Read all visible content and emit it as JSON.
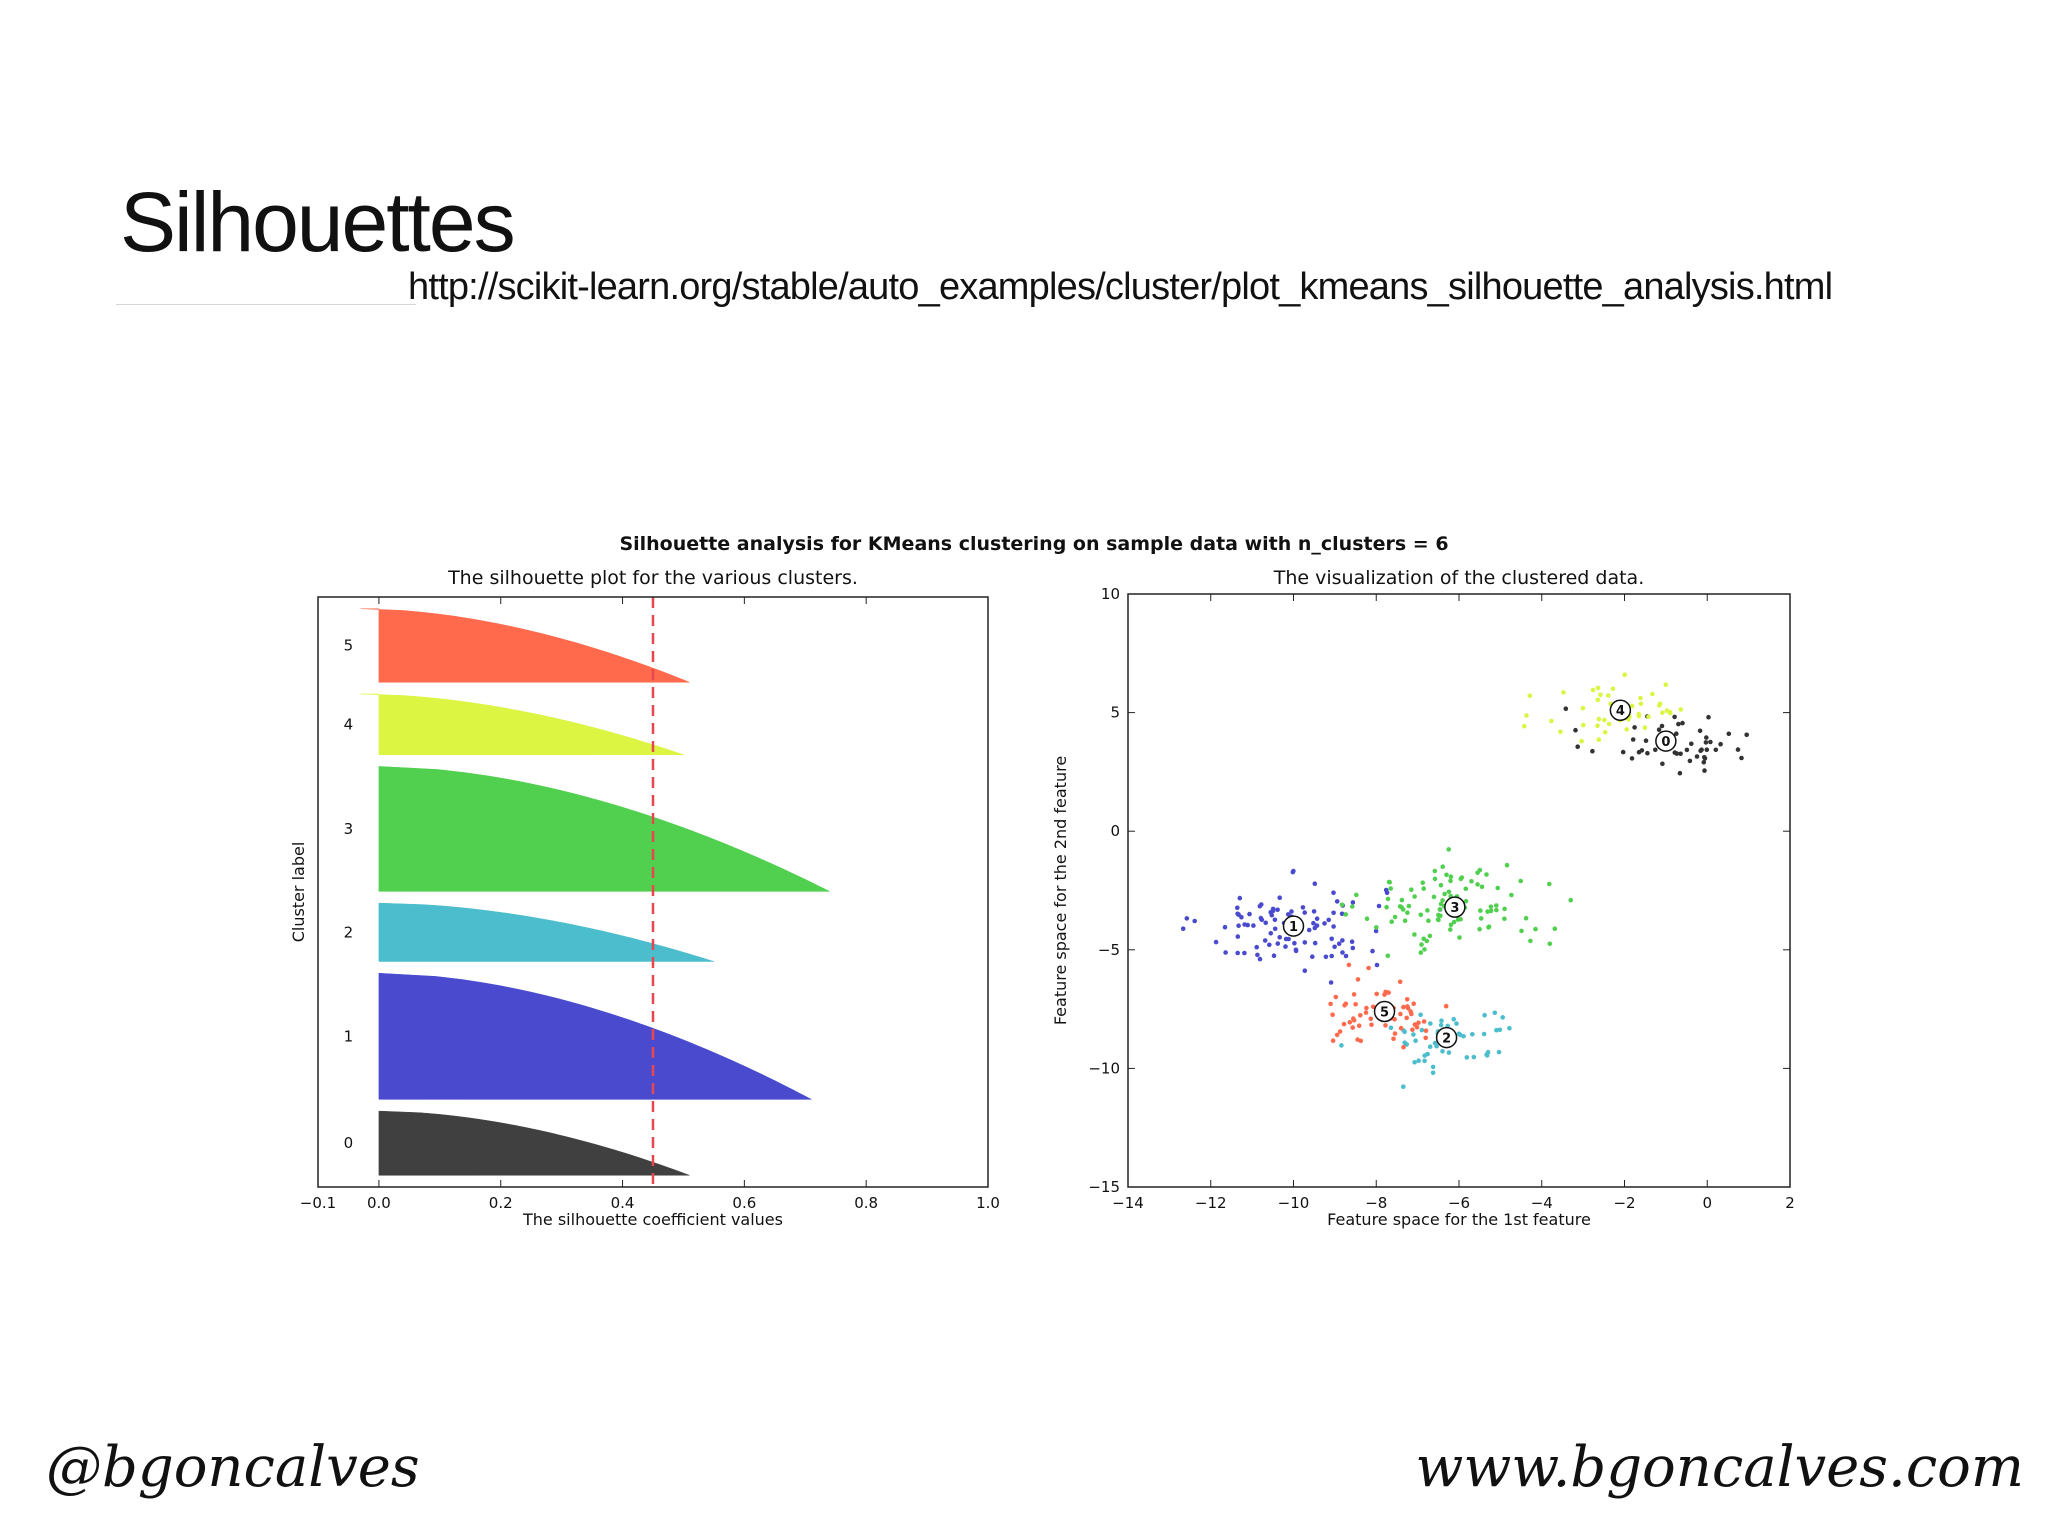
{
  "slide": {
    "title": "Silhouettes",
    "url": "http://scikit-learn.org/stable/auto_examples/cluster/plot_kmeans_silhouette_analysis.html",
    "footer_left": "@bgoncalves",
    "footer_right": "www.bgoncalves.com"
  },
  "figure": {
    "suptitle": "Silhouette analysis for KMeans clustering on sample data with n_clusters = 6"
  },
  "chart_data": [
    {
      "type": "silhouette",
      "title": "The silhouette plot for the various clusters.",
      "xlabel": "The silhouette coefficient values",
      "ylabel": "Cluster label",
      "xlim": [
        -0.1,
        1.0
      ],
      "xticks": [
        -0.1,
        0.0,
        0.2,
        0.4,
        0.6,
        0.8,
        1.0
      ],
      "xtick_labels": [
        "−0.1",
        "0.0",
        "0.2",
        "0.4",
        "0.6",
        "0.8",
        "1.0"
      ],
      "average_silhouette_score": 0.45,
      "average_line_color": "#e8474f",
      "clusters": [
        {
          "label": "0",
          "size": 55,
          "max": 0.51,
          "min": 0.0,
          "color": "#404040"
        },
        {
          "label": "1",
          "size": 108,
          "max": 0.71,
          "min": 0.0,
          "color": "#4a4acf"
        },
        {
          "label": "2",
          "size": 50,
          "max": 0.55,
          "min": 0.0,
          "color": "#4bbdcc"
        },
        {
          "label": "3",
          "size": 107,
          "max": 0.74,
          "min": 0.0,
          "color": "#51cf4f"
        },
        {
          "label": "4",
          "size": 52,
          "max": 0.5,
          "min": -0.03,
          "color": "#dbf542"
        },
        {
          "label": "5",
          "size": 63,
          "max": 0.51,
          "min": -0.03,
          "color": "#ff6a4d"
        }
      ]
    },
    {
      "type": "scatter",
      "title": "The visualization of the clustered data.",
      "xlabel": "Feature space for the 1st feature",
      "ylabel": "Feature space for the 2nd feature",
      "xlim": [
        -14,
        2
      ],
      "ylim": [
        -15,
        10
      ],
      "xticks": [
        -14,
        -12,
        -10,
        -8,
        -6,
        -4,
        -2,
        0,
        2
      ],
      "xtick_labels": [
        "−14",
        "−12",
        "−10",
        "−8",
        "−6",
        "−4",
        "−2",
        "0",
        "2"
      ],
      "yticks": [
        -15,
        -10,
        -5,
        0,
        5,
        10
      ],
      "ytick_labels": [
        "−15",
        "−10",
        "−5",
        "0",
        "5",
        "10"
      ],
      "clusters": [
        {
          "label": "0",
          "center": [
            -1.0,
            3.8
          ],
          "spread": [
            1.0,
            0.7
          ],
          "n": 50,
          "color": "#333333"
        },
        {
          "label": "1",
          "center": [
            -10.0,
            -4.0
          ],
          "spread": [
            1.1,
            0.9
          ],
          "n": 100,
          "color": "#4a4acf"
        },
        {
          "label": "2",
          "center": [
            -6.3,
            -8.7
          ],
          "spread": [
            0.9,
            0.8
          ],
          "n": 50,
          "color": "#4bbdcc"
        },
        {
          "label": "3",
          "center": [
            -6.1,
            -3.2
          ],
          "spread": [
            1.1,
            0.9
          ],
          "n": 100,
          "color": "#51cf4f"
        },
        {
          "label": "4",
          "center": [
            -2.1,
            5.1
          ],
          "spread": [
            0.9,
            0.8
          ],
          "n": 50,
          "color": "#dbf542"
        },
        {
          "label": "5",
          "center": [
            -7.8,
            -7.6
          ],
          "spread": [
            0.8,
            0.7
          ],
          "n": 63,
          "color": "#ff6a4d"
        }
      ]
    }
  ]
}
